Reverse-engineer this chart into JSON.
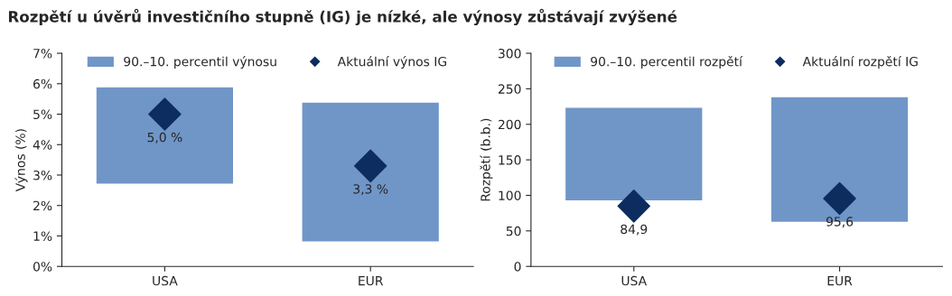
{
  "chart_data": [
    {
      "type": "bar",
      "title": "Rozpětí u úvěrů investičního stupně (IG) je nízké, ale výnosy zůstávají zvýšené",
      "categories": [
        "USA",
        "EUR"
      ],
      "ylabel": "Výnos (%)",
      "ylim": [
        0,
        7
      ],
      "yticks": [
        {
          "value": 0,
          "label": "0%"
        },
        {
          "value": 1,
          "label": "1%"
        },
        {
          "value": 2,
          "label": "2%"
        },
        {
          "value": 3,
          "label": "3%"
        },
        {
          "value": 4,
          "label": "4%"
        },
        {
          "value": 5,
          "label": "5%"
        },
        {
          "value": 6,
          "label": "6%"
        },
        {
          "value": 7,
          "label": "7%"
        }
      ],
      "legend": "top",
      "grid": false,
      "series": [
        {
          "type": "bar",
          "name": "90.–10. percentil výnosu",
          "color": "#7096c8",
          "base": [
            2.7,
            0.8
          ],
          "values": [
            3.2,
            4.6
          ]
        },
        {
          "type": "scatter",
          "name": "Aktuální výnos IG",
          "color": "#0d2d5f",
          "marker": "diamond",
          "values": [
            5.0,
            3.3
          ],
          "value_labels": [
            "5,0 %",
            "3,3 %"
          ]
        }
      ]
    },
    {
      "type": "bar",
      "categories": [
        "USA",
        "EUR"
      ],
      "ylabel": "Rozpětí (b.b.)",
      "ylim": [
        0,
        300
      ],
      "yticks": [
        0,
        50,
        100,
        150,
        200,
        250,
        300
      ],
      "legend": "top",
      "grid": false,
      "series": [
        {
          "type": "bar",
          "name": "90.–10. percentil rozpětí",
          "color": "#7096c8",
          "base": [
            92,
            62
          ],
          "values": [
            132,
            177
          ]
        },
        {
          "type": "scatter",
          "name": "Aktuální rozpětí IG",
          "color": "#0d2d5f",
          "marker": "diamond",
          "values": [
            84.9,
            95.6
          ],
          "value_labels": [
            "84,9",
            "95,6"
          ]
        }
      ]
    }
  ]
}
